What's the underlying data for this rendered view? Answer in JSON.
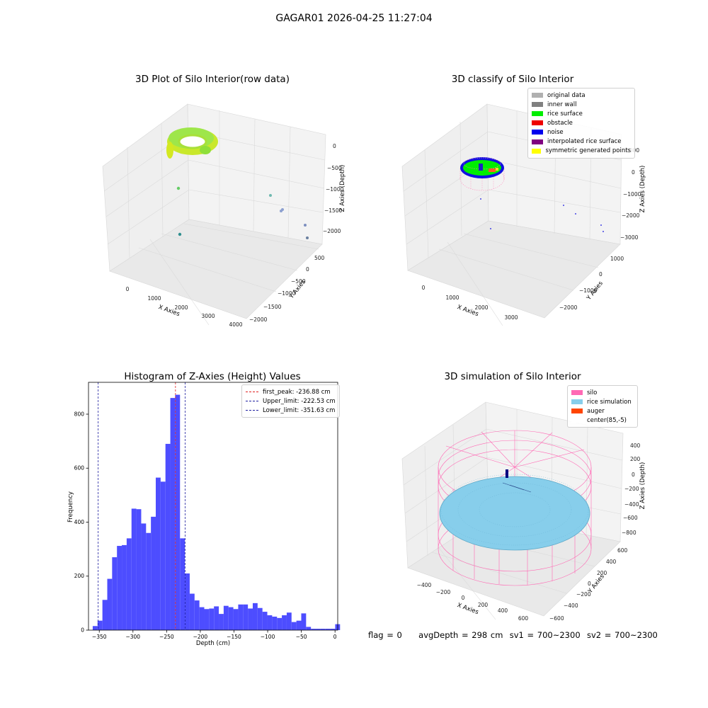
{
  "figure_title": "GAGAR01 2026-04-25 11:27:04",
  "footer": {
    "flag": "flag = 0",
    "avg_depth": "avgDepth = 298 cm",
    "sv1": "sv1 = 700~2300",
    "sv2": "sv2 = 700~2300"
  },
  "colors": {
    "hist_bar": "#4d4dff",
    "first_peak": "#e02020",
    "limits": "#1f1fa0",
    "silo": "#ff69b4",
    "rice_sim": "#87ceeb",
    "auger": "#ff4500",
    "center": "#ffffff"
  },
  "chart_data": [
    {
      "type": "scatter",
      "title": "3D Plot of Silo Interior(row data)",
      "xlabel": "X Axies",
      "ylabel": "Y Axies",
      "zlabel": "Z Axies (Depth)",
      "x_ticks": [
        "0",
        "1000",
        "2000",
        "3000",
        "4000"
      ],
      "y_ticks": [
        "500",
        "0",
        "−500",
        "−1000",
        "−1500",
        "−2000"
      ],
      "z_ticks": [
        "0",
        "−500",
        "−1000",
        "−1500",
        "−2000"
      ],
      "points_description": "rice surface ring near z=0; scattered outliers down to z=-2200"
    },
    {
      "type": "scatter",
      "title": "3D classify of Silo Interior",
      "xlabel": "X Axies",
      "ylabel": "Y Axies",
      "zlabel": "Z Axies (Depth)",
      "x_ticks": [
        "0",
        "1000",
        "2000",
        "3000"
      ],
      "y_ticks": [
        "1000",
        "0",
        "−1000",
        "−2000"
      ],
      "z_ticks": [
        "1000",
        "0",
        "−1000",
        "−2000",
        "−3000"
      ],
      "legend": [
        {
          "label": "original data",
          "color": "#b0b0b0"
        },
        {
          "label": "inner wall",
          "color": "#808080"
        },
        {
          "label": "rice surface",
          "color": "#00ee00"
        },
        {
          "label": "obstacle",
          "color": "#ee0000"
        },
        {
          "label": "noise",
          "color": "#0000ee"
        },
        {
          "label": "interpolated rice surface",
          "color": "#800080"
        },
        {
          "label": "symmetric generated points",
          "color": "#ffff00"
        }
      ]
    },
    {
      "type": "bar",
      "title": "Histogram of Z-Axies (Height) Values",
      "xlabel": "Depth (cm)",
      "ylabel": "Frequency",
      "xlim": [
        -366,
        4
      ],
      "ylim": [
        0,
        918
      ],
      "x_ticks": [
        -350,
        -300,
        -250,
        -200,
        -150,
        -100,
        -50,
        0
      ],
      "y_ticks": [
        0,
        200,
        400,
        600,
        800
      ],
      "bin_edges_start": -359.75,
      "bin_width": 7.2,
      "values": [
        15,
        35,
        112,
        190,
        270,
        312,
        315,
        340,
        450,
        448,
        395,
        360,
        420,
        565,
        550,
        690,
        860,
        872,
        340,
        210,
        135,
        110,
        85,
        78,
        80,
        88,
        60,
        90,
        85,
        78,
        95,
        95,
        80,
        100,
        82,
        68,
        55,
        50,
        45,
        55,
        65,
        30,
        35,
        62,
        12,
        5,
        5,
        5,
        5,
        5,
        22
      ],
      "vlines": [
        {
          "name": "first_peak: -236.88 cm",
          "x": -236.88,
          "color": "#e02020"
        },
        {
          "name": "Upper_limit: -222.53 cm",
          "x": -222.53,
          "color": "#1f1fa0"
        },
        {
          "name": "Lower_limit: -351.63 cm",
          "x": -351.63,
          "color": "#1f1fa0"
        }
      ],
      "legend_position": "top-right"
    },
    {
      "type": "scatter",
      "title": "3D simulation of Silo Interior",
      "xlabel": "X Axies",
      "ylabel": "Y Axies",
      "zlabel": "Z Axies (Depth)",
      "x_ticks": [
        "−400",
        "−200",
        "0",
        "200",
        "400",
        "600"
      ],
      "y_ticks": [
        "600",
        "400",
        "200",
        "0",
        "−200",
        "−400",
        "−600"
      ],
      "z_ticks": [
        "400",
        "200",
        "0",
        "−200",
        "−400",
        "−600",
        "−800"
      ],
      "legend": [
        {
          "label": "silo",
          "color": "#ff69b4"
        },
        {
          "label": "rice simulation",
          "color": "#87ceeb"
        },
        {
          "label": "auger",
          "color": "#ff4500"
        },
        {
          "label": "center(85,-5)",
          "color": "#ffffff"
        }
      ]
    }
  ]
}
